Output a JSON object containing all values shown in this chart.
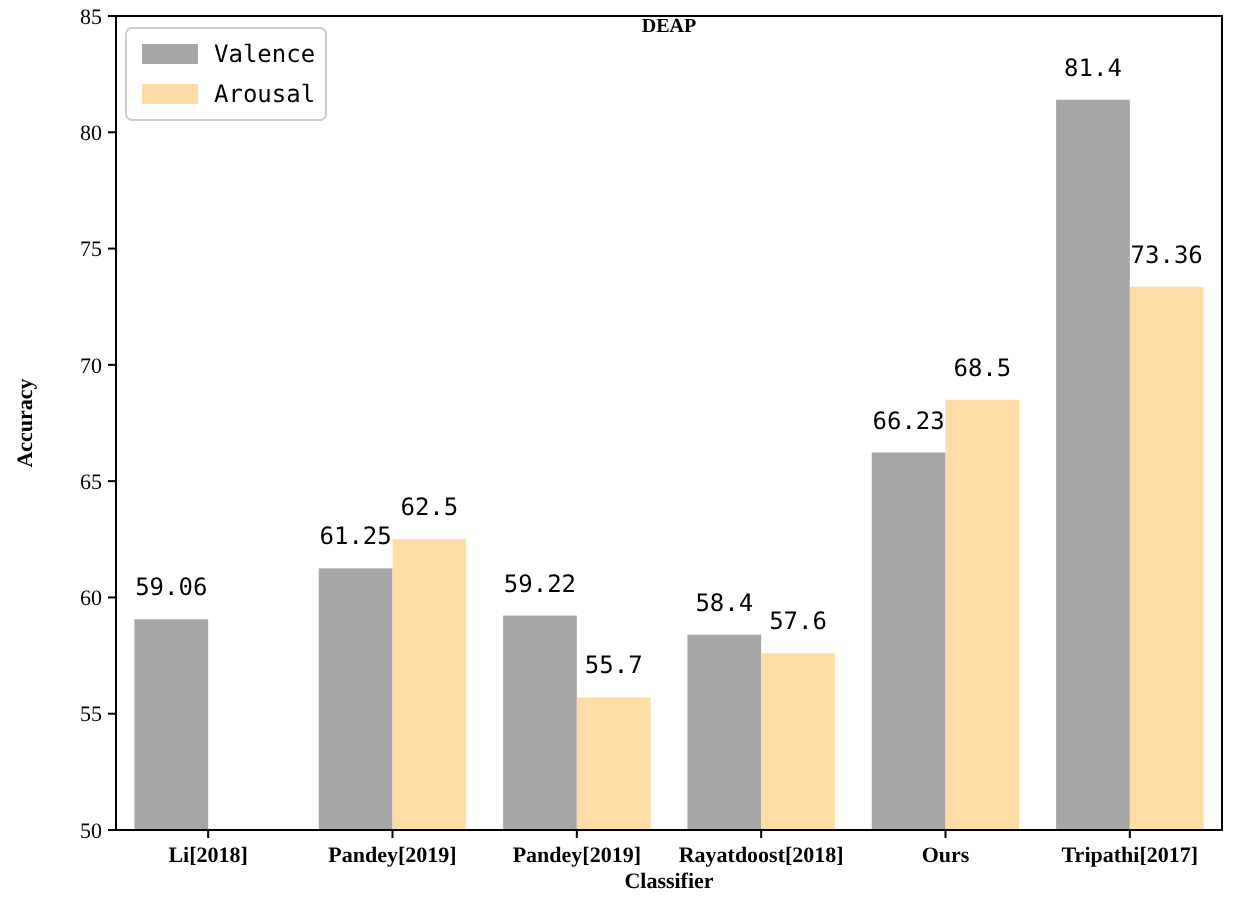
{
  "chart_data": {
    "type": "bar",
    "title": "DEAP",
    "xlabel": "Classifier",
    "ylabel": "Accuracy",
    "categories": [
      "Li[2018]",
      "Pandey[2019]",
      "Pandey[2019]",
      "Rayatdoost[2018]",
      "Ours",
      "Tripathi[2017]"
    ],
    "series": [
      {
        "name": "Valence",
        "color": "#a6a6a6",
        "values": [
          59.06,
          61.25,
          59.22,
          58.4,
          66.23,
          81.4
        ]
      },
      {
        "name": "Arousal",
        "color": "#fedca6",
        "values": [
          null,
          62.5,
          55.7,
          57.6,
          68.5,
          73.36
        ]
      }
    ],
    "ylim": [
      50,
      85
    ],
    "yticks": [
      50,
      55,
      60,
      65,
      70,
      75,
      80,
      85
    ],
    "data_labels": true,
    "legend": "top left",
    "grid": false
  }
}
